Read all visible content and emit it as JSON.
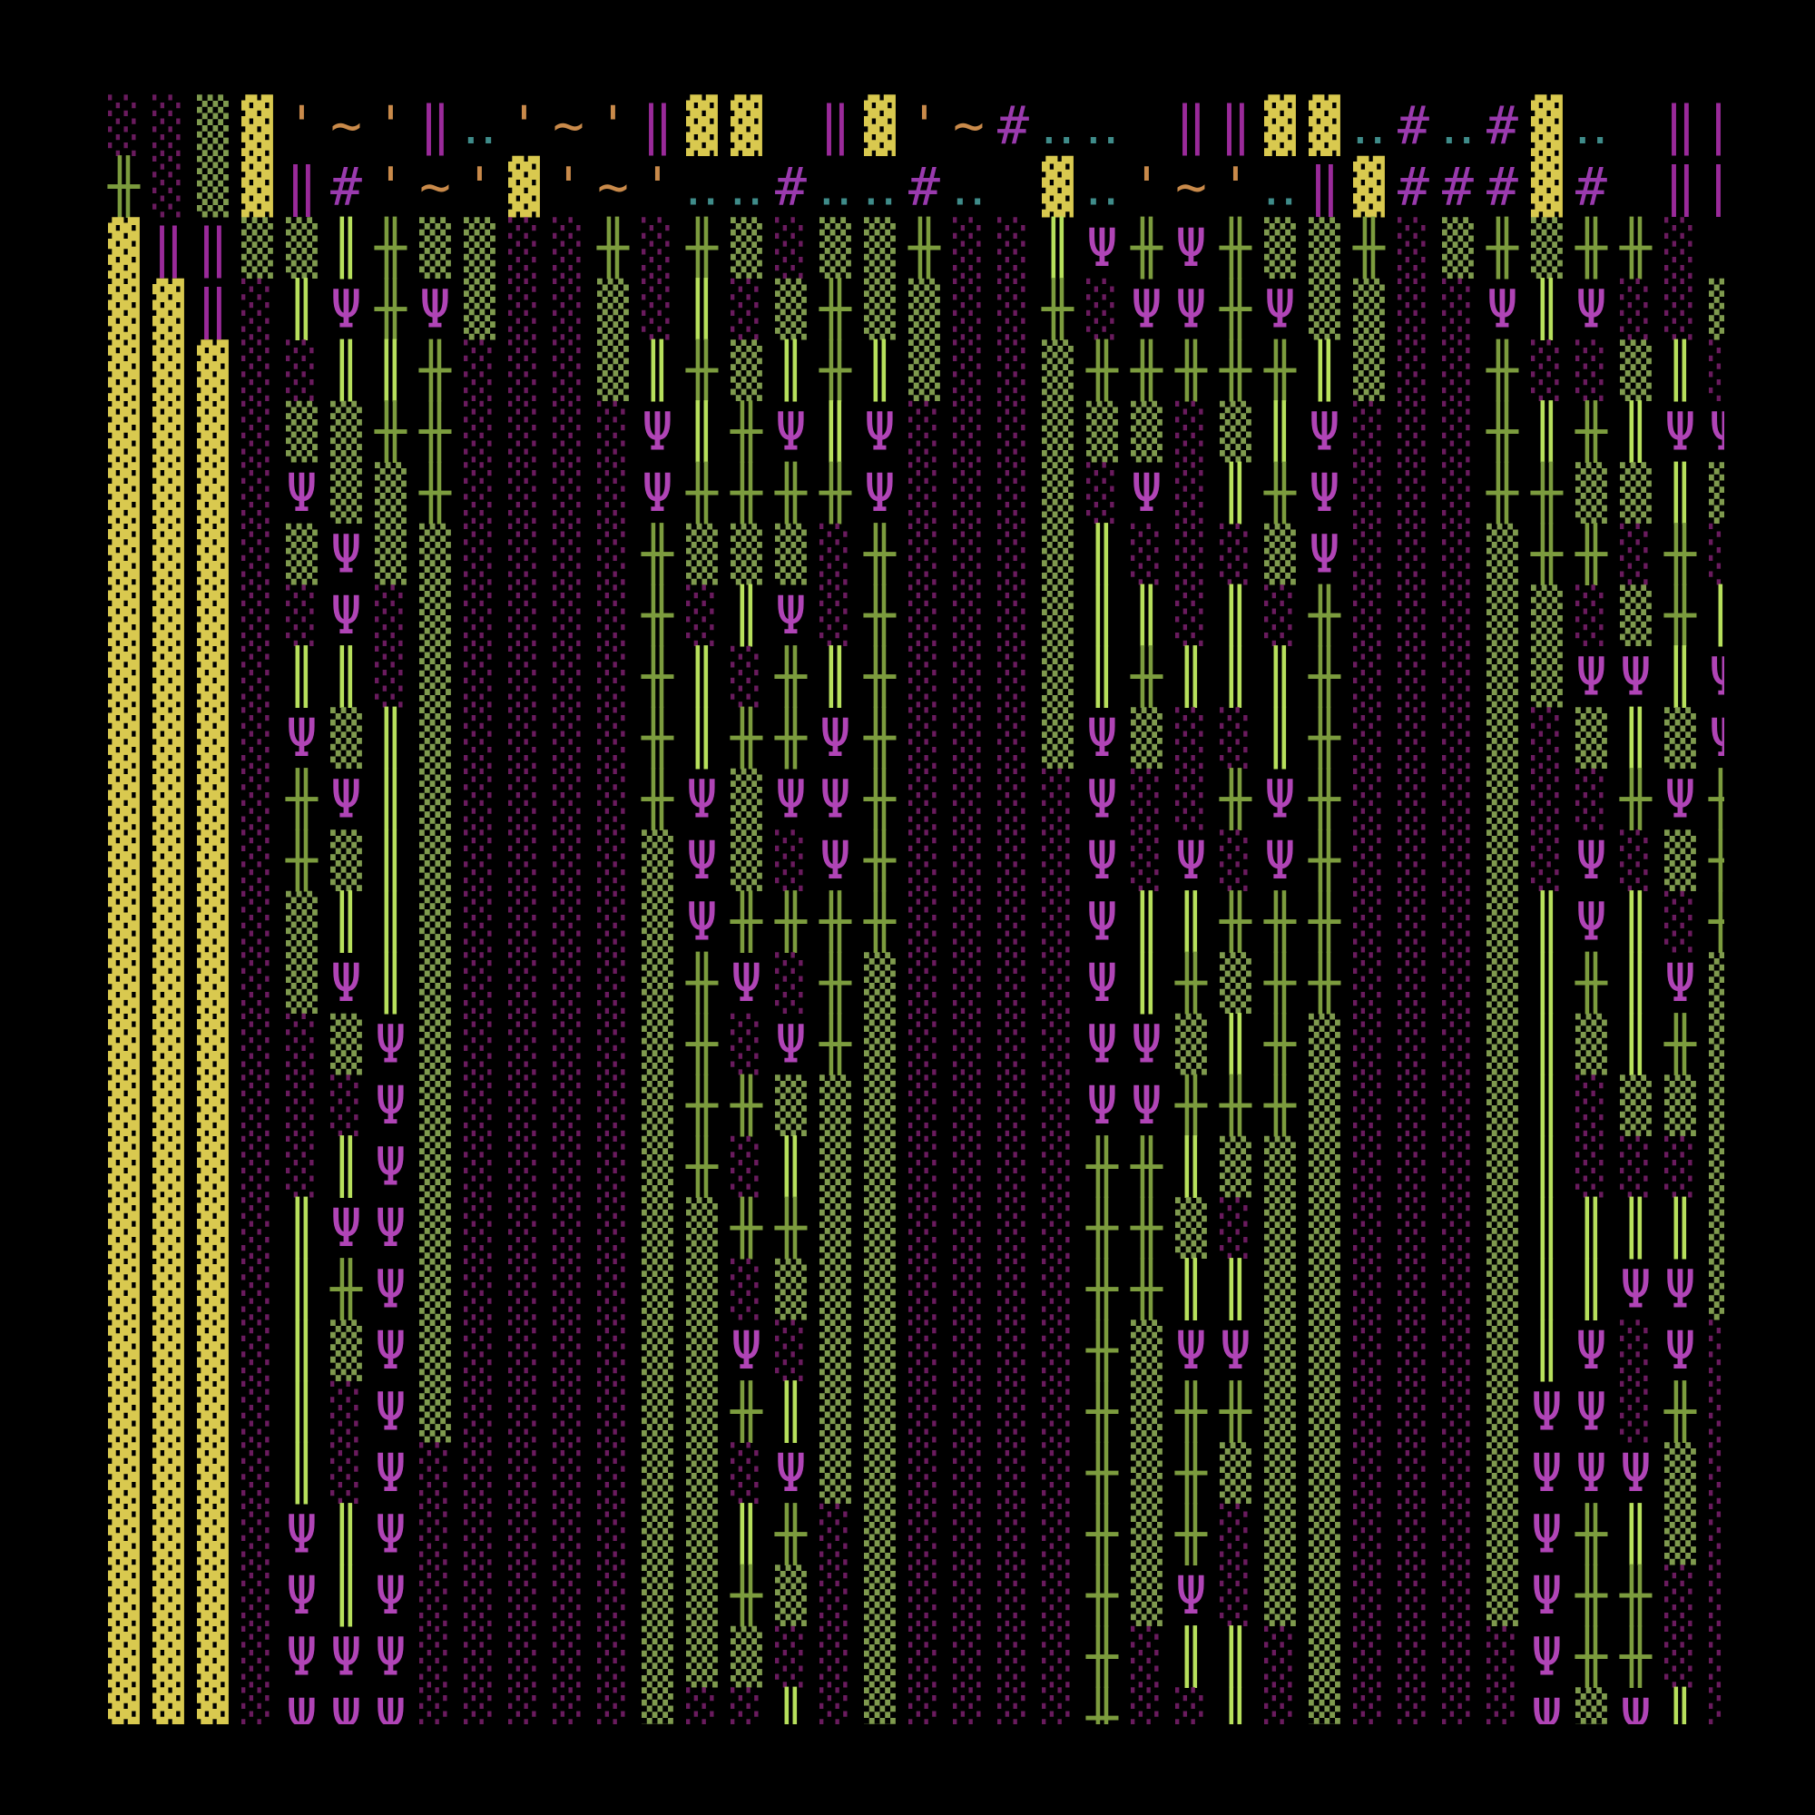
{
  "map": {
    "rows": [
      "░░▒▓'~'‖‥'~'‖▓▓ ‖▓'~#‥‥ ‖‖▓▓‥#‥#▓‥ ‖‖▓▓'~#‥#'~'",
      "╫░▒▓‖#'~'▓'~'‥‥#‥‥#‥ ▓‥'~'‥‖▓###▓# ‖‖▓'~'~#‥'~'#",
      "▓‖‖▒▒║╫▒▒░░╫░╫▒░▒▒╫░░║Ψ╫Ψ╫▒▒╫░▒╫▒╫╫░",
      "▓▓‖░║Ψ╫Ψ▒░░▒░║░▒╫▒▒░░╫░ΨΨ╫Ψ▒▒░░Ψ║Ψ░░▒",
      "▓▓▓░░║║╫░░░▒║╫▒║╫║▒░░▒╫╫╫╫╫║▒░░╫░░▒║░",
      "▓▓▓░▒▒╫╫░░░░Ψ║╫Ψ║Ψ░░░▒▒▒░▒║Ψ░░░╫║╫║ΨΨ",
      "▓▓▓░Ψ▒▒╫░░░░Ψ╫╫╫╫Ψ░░░▒░Ψ░║╫Ψ░░░╫╫▒▒║▒",
      "▓▓▓░▒Ψ▒▒░░░░╫▒▒▒░╫░░░▒║░░░▒Ψ░░░▒╫╫░╫░",
      "▓▓▓░░Ψ░▒░░░░╫░║Ψ░╫░░░▒║║░║░╫░░░▒▒░▒╫║",
      "▓▓▓░║║░▒░░░░╫║░╫║╫░░░▒║╫║║║╫░░░▒▒ΨΨ║Ψ",
      "▓▓▓░Ψ▒║▒░░░░╫║╫╫Ψ╫░░░▒Ψ▒░░║╫░░░▒░▒║▒Ψ",
      "▓▓▓░╫Ψ║▒░░░░╫Ψ▒ΨΨ╫░░░░Ψ░░╫Ψ╫░░░▒░░╫Ψ╫",
      "▓▓▓░╫▒║▒░░░░▒Ψ▒░Ψ╫░░░░Ψ░Ψ░Ψ╫░░░▒░Ψ░▒╫",
      "▓▓▓░▒║║▒░░░░▒Ψ╫╫╫╫░░░░Ψ║║╫╫╫░░░▒║Ψ║░╫",
      "▓▓▓░▒Ψ║▒░░░░▒╫Ψ░╫▒░░░░Ψ║╫▒╫╫░░░▒║╫║Ψ▒",
      "▓▓▓░░▒Ψ▒░░░░▒╫░Ψ╫▒░░░░ΨΨ▒║╫▒░░░▒║▒║╫▒",
      "▓▓▓░░░Ψ▒░░░░▒╫╫▒▒▒░░░░ΨΨ╫╫╫▒░░░▒║░▒▒▒",
      "▓▓▓░░║Ψ▒░░░░▒╫░║▒▒░░░░╫╫║▒▒▒░░░▒║░░░▒",
      "▓▓▓░║ΨΨ▒░░░░▒▒╫╫▒▒░░░░╫╫▒░▒▒░░░▒║║║║▒",
      "▓▓▓░║╫Ψ▒░░░░▒▒░▒▒▒░░░░╫╫║║▒▒░░░▒║║ΨΨ▒",
      "▓▓▓░║▒Ψ▒░░░░▒▒Ψ░▒▒░░░░╫▒ΨΨ▒▒░░░▒║Ψ░Ψ░",
      "▓▓▓░║░Ψ▒░░░░▒▒╫║▒▒░░░░╫▒╫╫▒▒░░░▒ΨΨ░╫░",
      "▓▓▓░║░Ψ░░░░░▒▒░Ψ▒▒░░░░╫▒╫▒▒▒░░░▒ΨΨΨ▒░",
      "▓▓▓░Ψ║Ψ░░░░░▒▒║╫░▒░░░░╫▒╫░▒▒░░░▒Ψ╫║▒░",
      "▓▓▓░Ψ║Ψ░░░░░▒▒╫▒░▒░░░░╫▒Ψ░▒▒░░░▒Ψ╫╫░░",
      "▓▓▓░ΨΨΨ░░░░░▒▒▒░░▒░░░░╫░║║░▒░░░░Ψ╫╫░░",
      "▓▓▓░ΨΨΨ░░░░░▒░░║░▒░░░░╫░░║░▒░░░░Ψ▒Ψ║░"
    ],
    "palette": {
      "▓": "#d9c94f",
      "▒": "#7f9a4e",
      "░": "#6a1b5e",
      "╫": "#7c9c3e",
      "║": "#b7e05c",
      "Ψ": "#b044b6",
      "#": "#9a3aae",
      "~": "#c98a4a",
      "'": "#c98a4a",
      "‥": "#3f8c8a",
      "‖": "#9a2a9a"
    }
  }
}
